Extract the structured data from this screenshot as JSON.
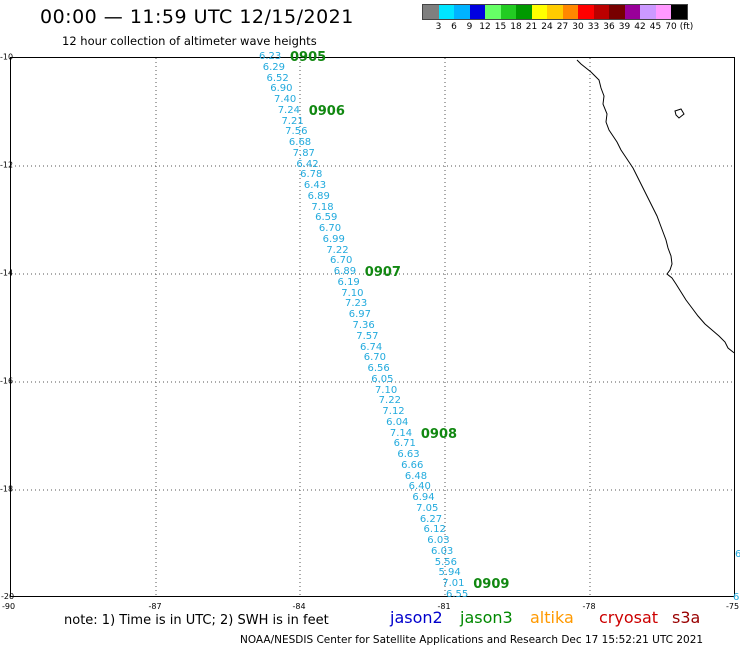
{
  "title": "00:00 — 11:59 UTC 12/15/2021",
  "subtitle": "12 hour collection of altimeter wave heights",
  "legend": {
    "colors": [
      "#7f7f7f",
      "#00e5ff",
      "#00b3ff",
      "#0000e0",
      "#66ff66",
      "#22cc22",
      "#009900",
      "#ffff00",
      "#ffcc00",
      "#ff8800",
      "#ff0000",
      "#bb0000",
      "#770000",
      "#990099",
      "#cc99ff",
      "#ff99ff",
      "#000000"
    ],
    "labels": [
      "3",
      "6",
      "9",
      "12",
      "15",
      "18",
      "21",
      "24",
      "27",
      "30",
      "33",
      "36",
      "39",
      "42",
      "45",
      "70",
      "(ft)"
    ]
  },
  "axes": {
    "lat_labels": [
      "-10",
      "-12",
      "-14",
      "-16",
      "-18"
    ],
    "lon_labels": [
      "-87",
      "-84",
      "-81",
      "-78"
    ],
    "corner_lat": "-20",
    "corner_lon_left": "-90",
    "corner_lon_right": "-75"
  },
  "track": {
    "wave_heights": [
      "6.23",
      "6.29",
      "6.52",
      "6.90",
      "7.40",
      "7.24",
      "7.21",
      "7.56",
      "6.68",
      "7.87",
      "6.42",
      "6.78",
      "6.43",
      "6.89",
      "7.18",
      "6.59",
      "6.70",
      "6.99",
      "7.22",
      "6.70",
      "6.89",
      "6.19",
      "7.10",
      "7.23",
      "6.97",
      "7.36",
      "7.57",
      "6.74",
      "6.70",
      "6.56",
      "6.05",
      "7.10",
      "7.22",
      "7.12",
      "6.04",
      "7.14",
      "6.71",
      "6.63",
      "6.66",
      "6.48",
      "6.40",
      "6.94",
      "7.05",
      "6.27",
      "6.12",
      "6.03",
      "6.03",
      "5.56",
      "5.94",
      "7.01",
      "6.55"
    ],
    "times": [
      {
        "label": "0905",
        "index": 0
      },
      {
        "label": "0906",
        "index": 5
      },
      {
        "label": "0907",
        "index": 20
      },
      {
        "label": "0908",
        "index": 35
      },
      {
        "label": "0909",
        "index": 49
      }
    ],
    "edge_values": [
      "6",
      "6"
    ]
  },
  "note": "note: 1) Time is in UTC; 2) SWH is in feet",
  "satellites": [
    {
      "name": "jason2",
      "color": "#0000cc"
    },
    {
      "name": "jason3",
      "color": "#008800"
    },
    {
      "name": "altika",
      "color": "#ff9900"
    },
    {
      "name": "cryosat",
      "color": "#cc0000"
    },
    {
      "name": "s3a",
      "color": "#990000"
    }
  ],
  "credit": "NOAA/NESDIS Center for Satellite Applications and Research    Dec 17 15:52:21 UTC 2021"
}
